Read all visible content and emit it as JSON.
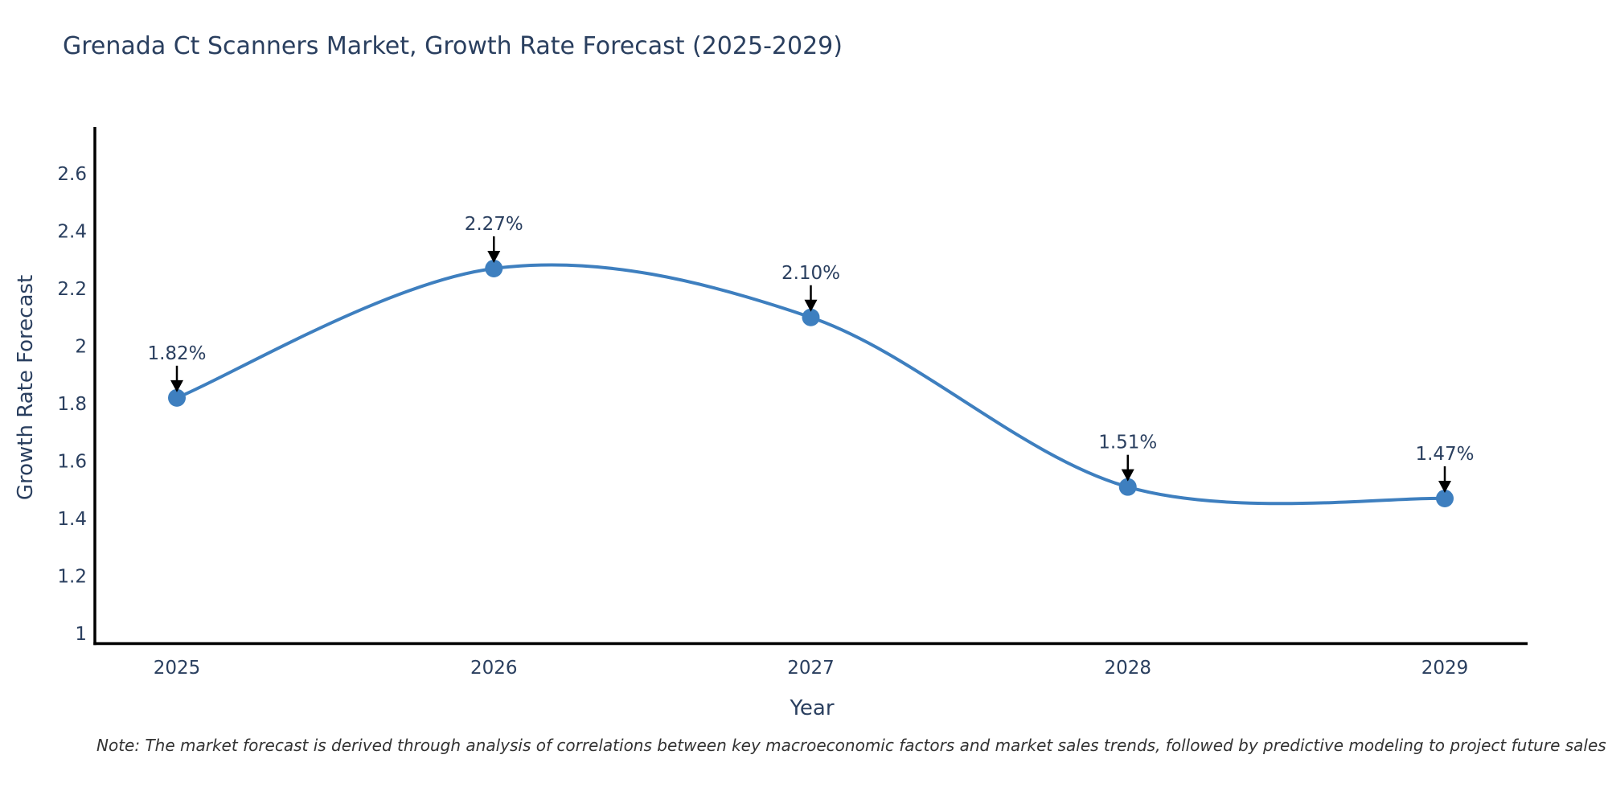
{
  "page": {
    "background_color": "#ffffff"
  },
  "header": {
    "title": "Grenada Ct Scanners Market, Growth Rate Forecast (2025-2029)"
  },
  "footer": {
    "note": "Note: The market forecast is derived through analysis of correlations between key macroeconomic factors and market sales trends, followed by predictive modeling to project future sales"
  },
  "chart_data": {
    "type": "line",
    "title": "Grenada Ct Scanners Market, Growth Rate Forecast (2025-2029)",
    "x": [
      2025,
      2026,
      2027,
      2028,
      2029
    ],
    "series": [
      {
        "name": "Growth Rate Forecast",
        "values": [
          1.82,
          2.27,
          2.1,
          1.51,
          1.47
        ]
      }
    ],
    "point_labels": [
      "1.82%",
      "2.27%",
      "2.10%",
      "1.51%",
      "1.47%"
    ],
    "xlabel": "Year",
    "ylabel": "Growth Rate Forecast",
    "ylim": [
      1,
      2.76
    ],
    "yticks": [
      1,
      1.2,
      1.4,
      1.6,
      1.8,
      2,
      2.2,
      2.4,
      2.6
    ],
    "grid": false,
    "legend_position": "none",
    "line_shape": "spline",
    "colors": {
      "line": "#3e7fbf",
      "marker": "#3e7fbf",
      "axis": "#000000",
      "tick_text": "#2a3f5f",
      "annotation_text": "#2a3f5f",
      "annotation_arrow": "#000000"
    }
  }
}
